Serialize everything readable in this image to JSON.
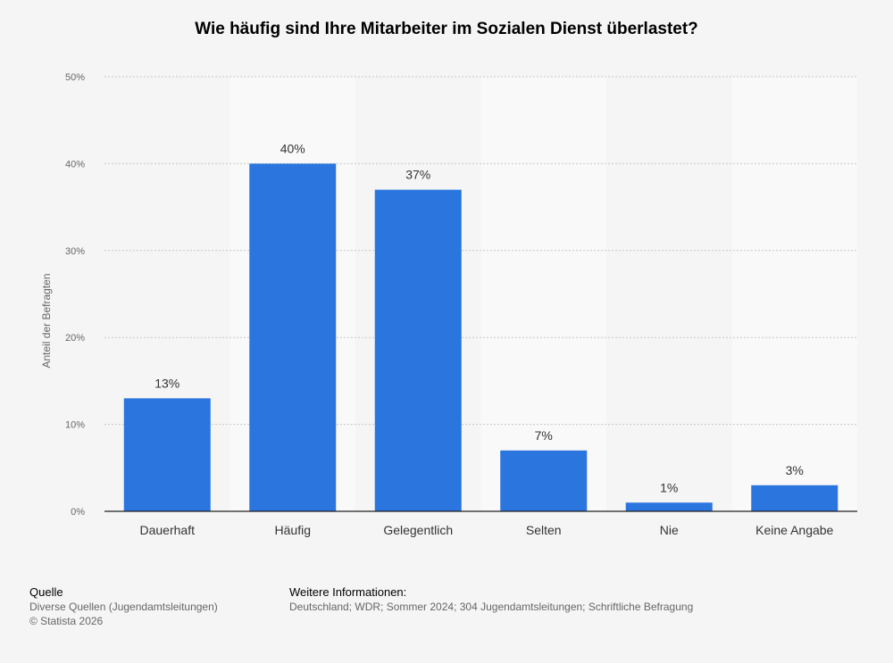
{
  "header": {
    "title": "Wie häufig sind Ihre Mitarbeiter im Sozialen Dienst überlastet?"
  },
  "chart_data": {
    "type": "bar",
    "title": "Wie häufig sind Ihre Mitarbeiter im Sozialen Dienst überlastet?",
    "categories": [
      "Dauerhaft",
      "Häufig",
      "Gelegentlich",
      "Selten",
      "Nie",
      "Keine Angabe"
    ],
    "values": [
      13,
      40,
      37,
      7,
      1,
      3
    ],
    "value_labels": [
      "13%",
      "40%",
      "37%",
      "7%",
      "1%",
      "3%"
    ],
    "ylabel": "Anteil der Befragten",
    "xlabel": "",
    "ylim": [
      0,
      50
    ],
    "yticks": [
      0,
      10,
      20,
      30,
      40,
      50
    ],
    "ytick_labels": [
      "0%",
      "10%",
      "20%",
      "30%",
      "40%",
      "50%"
    ],
    "grid": true,
    "bar_color": "#2b75de",
    "band_color": "#f9f9f9"
  },
  "footer": {
    "source_label": "Quelle",
    "source_text": "Diverse Quellen (Jugendamtsleitungen)",
    "copyright": "© Statista 2026",
    "info_label": "Weitere Informationen:",
    "info_text": "Deutschland; WDR; Sommer 2024; 304 Jugendamtsleitungen; Schriftliche Befragung"
  }
}
